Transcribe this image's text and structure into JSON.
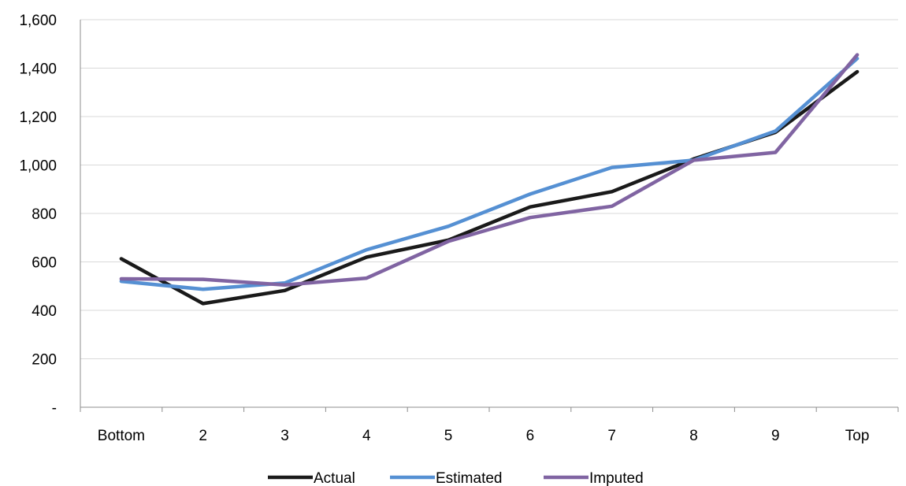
{
  "chart_data": {
    "type": "line",
    "categories": [
      "Bottom",
      "2",
      "3",
      "4",
      "5",
      "6",
      "7",
      "8",
      "9",
      "Top"
    ],
    "series": [
      {
        "name": "Actual",
        "color": "#1a1a1a",
        "values": [
          613,
          428,
          482,
          620,
          690,
          827,
          890,
          1025,
          1135,
          1385
        ]
      },
      {
        "name": "Estimated",
        "color": "#5590d3",
        "values": [
          520,
          487,
          513,
          650,
          747,
          880,
          990,
          1020,
          1140,
          1440
        ]
      },
      {
        "name": "Imputed",
        "color": "#8064a2",
        "values": [
          530,
          528,
          505,
          533,
          685,
          783,
          830,
          1020,
          1052,
          1455
        ]
      }
    ],
    "y_ticks": [
      "-",
      "200",
      "400",
      "600",
      "800",
      "1,000",
      "1,200",
      "1,400",
      "1,600"
    ],
    "ylim": [
      0,
      1600
    ],
    "y_step": 200,
    "grid": true,
    "legend_position": "bottom",
    "title": "",
    "xlabel": "",
    "ylabel": ""
  }
}
